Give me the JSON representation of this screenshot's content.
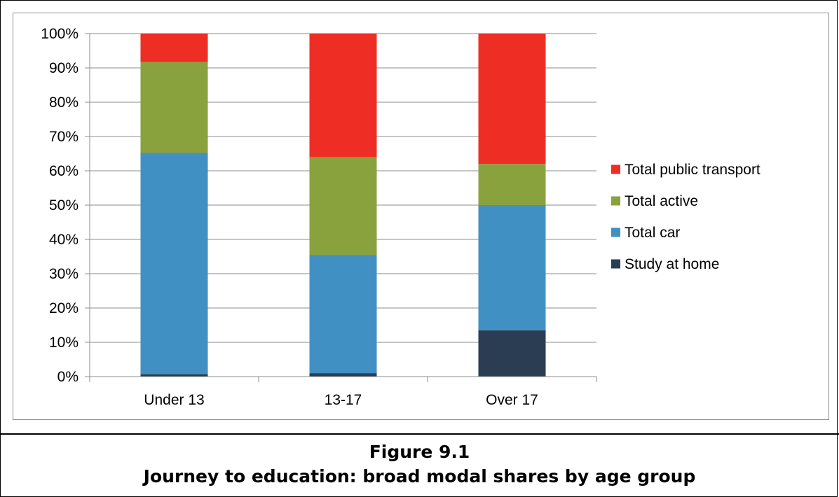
{
  "figure": {
    "number": "Figure 9.1",
    "title": "Journey to education: broad modal shares by age group"
  },
  "chart_data": {
    "type": "bar",
    "stacked": true,
    "categories": [
      "Under 13",
      "13-17",
      "Over 17"
    ],
    "series": [
      {
        "name": "Study at home",
        "color": "#2b3d52",
        "values": [
          0.7,
          1.0,
          13.5
        ]
      },
      {
        "name": "Total car",
        "color": "#4190c4",
        "values": [
          64.5,
          34.5,
          36.5
        ]
      },
      {
        "name": "Total active",
        "color": "#89a23d",
        "values": [
          26.5,
          28.5,
          12.0
        ]
      },
      {
        "name": "Total public transport",
        "color": "#ee2e24",
        "values": [
          8.3,
          36.0,
          38.0
        ]
      }
    ],
    "y_ticks": [
      "0%",
      "10%",
      "20%",
      "30%",
      "40%",
      "50%",
      "60%",
      "70%",
      "80%",
      "90%",
      "100%"
    ],
    "ylim": [
      0,
      100
    ],
    "grid": true,
    "legend_position": "right",
    "legend_order": [
      "Total public transport",
      "Total active",
      "Total car",
      "Study at home"
    ]
  }
}
